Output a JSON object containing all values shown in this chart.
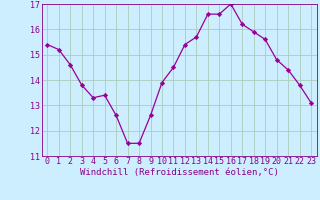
{
  "x": [
    0,
    1,
    2,
    3,
    4,
    5,
    6,
    7,
    8,
    9,
    10,
    11,
    12,
    13,
    14,
    15,
    16,
    17,
    18,
    19,
    20,
    21,
    22,
    23
  ],
  "y": [
    15.4,
    15.2,
    14.6,
    13.8,
    13.3,
    13.4,
    12.6,
    11.5,
    11.5,
    12.6,
    13.9,
    14.5,
    15.4,
    15.7,
    16.6,
    16.6,
    17.0,
    16.2,
    15.9,
    15.6,
    14.8,
    14.4,
    13.8,
    13.1
  ],
  "xlabel": "Windchill (Refroidissement éolien,°C)",
  "xlim": [
    -0.5,
    23.5
  ],
  "ylim": [
    11,
    17
  ],
  "yticks": [
    11,
    12,
    13,
    14,
    15,
    16,
    17
  ],
  "xticks": [
    0,
    1,
    2,
    3,
    4,
    5,
    6,
    7,
    8,
    9,
    10,
    11,
    12,
    13,
    14,
    15,
    16,
    17,
    18,
    19,
    20,
    21,
    22,
    23
  ],
  "line_color": "#990099",
  "marker": "D",
  "marker_size": 2.2,
  "bg_color": "#cceeff",
  "grid_color": "#aaccbb",
  "tick_color": "#880088",
  "label_color": "#880088",
  "xlabel_fontsize": 6.5,
  "tick_fontsize": 6.0,
  "linewidth": 0.9
}
